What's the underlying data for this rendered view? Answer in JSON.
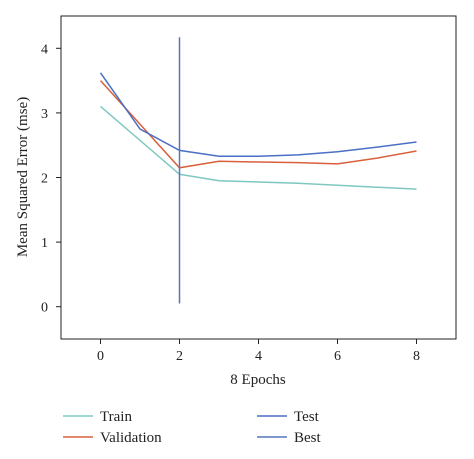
{
  "chart_data": {
    "type": "line",
    "xlabel": "8 Epochs",
    "ylabel": "Mean Squared Error (mse)",
    "xlim": [
      -1,
      9
    ],
    "ylim": [
      -0.5,
      4.5
    ],
    "xticks": [
      "0",
      "2",
      "4",
      "6",
      "8"
    ],
    "yticks": [
      "0",
      "1",
      "2",
      "3",
      "4"
    ],
    "grid": false,
    "legend_position": "bottom",
    "series": [
      {
        "name": "Train",
        "color": "#7ec8c0",
        "x": [
          0,
          2,
          3,
          4,
          5,
          6,
          7,
          8
        ],
        "y": [
          3.1,
          2.05,
          1.95,
          1.93,
          1.91,
          1.88,
          1.85,
          1.82
        ]
      },
      {
        "name": "Validation",
        "color": "#d9603b",
        "x": [
          0,
          2,
          3,
          4,
          5,
          6,
          7,
          8
        ],
        "y": [
          3.5,
          2.15,
          2.25,
          2.24,
          2.23,
          2.21,
          2.3,
          2.41
        ]
      },
      {
        "name": "Test",
        "color": "#4a6fc4",
        "x": [
          0,
          1,
          2,
          3,
          4,
          5,
          6,
          7,
          8
        ],
        "y": [
          3.62,
          2.75,
          2.42,
          2.33,
          2.33,
          2.35,
          2.4,
          2.47,
          2.55
        ]
      },
      {
        "name": "Best",
        "color": "#5577bb",
        "x": [
          2,
          2
        ],
        "y": [
          0.05,
          4.17
        ]
      }
    ]
  }
}
